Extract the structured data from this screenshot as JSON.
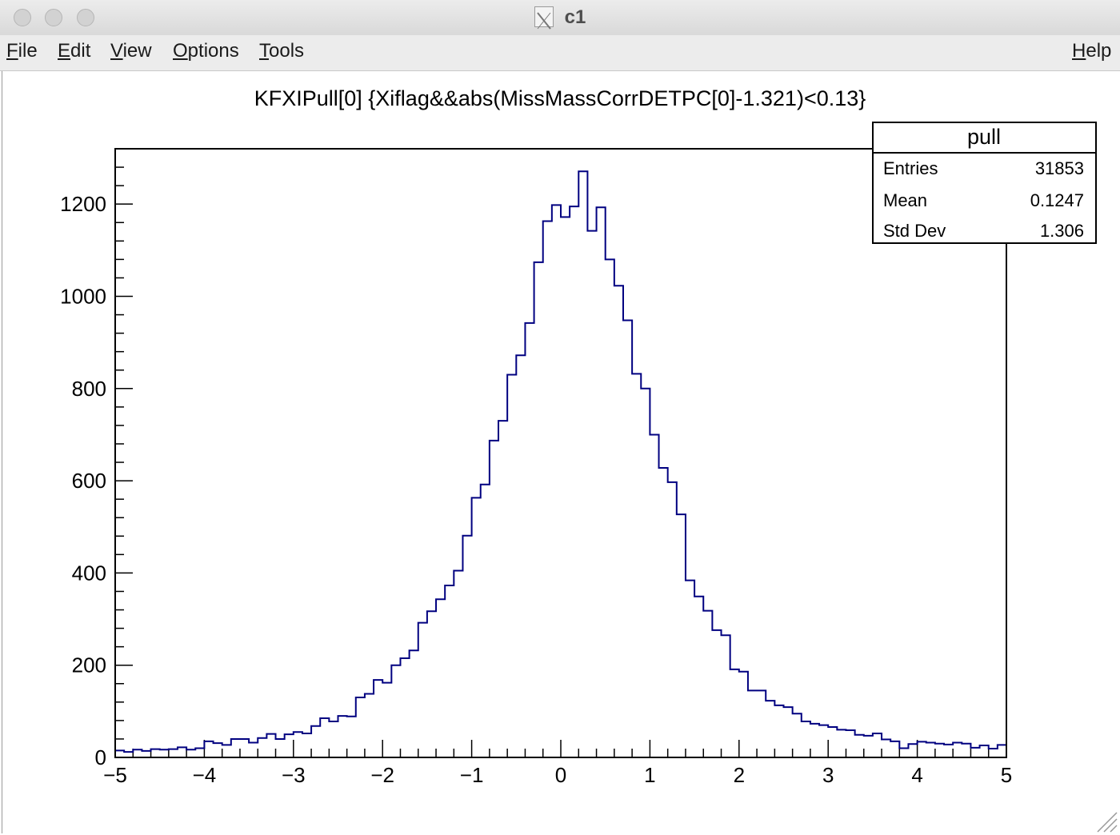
{
  "window": {
    "title": "c1"
  },
  "menu": {
    "items": [
      {
        "first": "F",
        "rest": "ile"
      },
      {
        "first": "E",
        "rest": "dit"
      },
      {
        "first": "V",
        "rest": "iew"
      },
      {
        "first": "O",
        "rest": "ptions"
      },
      {
        "first": "T",
        "rest": "ools"
      }
    ],
    "help": {
      "first": "H",
      "rest": "elp"
    }
  },
  "stats": {
    "name": "pull",
    "rows": [
      {
        "label": "Entries",
        "value": "31853"
      },
      {
        "label": "Mean",
        "value": "0.1247"
      },
      {
        "label": "Std Dev",
        "value": "1.306"
      }
    ]
  },
  "colors": {
    "histogram": "#000080",
    "axis": "#000000"
  },
  "chart_data": {
    "type": "histogram",
    "title": "KFXIPull[0] {Xiflag&&abs(MissMassCorrDETPC[0]-1.321)<0.13}",
    "xlabel": "",
    "ylabel": "",
    "xlim": [
      -5,
      5
    ],
    "ylim": [
      0,
      1320
    ],
    "bin_width": 0.1,
    "x_ticks": [
      "−5",
      "−4",
      "−3",
      "−2",
      "−1",
      "0",
      "1",
      "2",
      "3",
      "4",
      "5"
    ],
    "y_ticks": [
      "0",
      "200",
      "400",
      "600",
      "800",
      "1000",
      "1200"
    ],
    "values": [
      15,
      12,
      17,
      14,
      18,
      17,
      18,
      22,
      17,
      20,
      35,
      31,
      27,
      40,
      40,
      32,
      42,
      51,
      40,
      50,
      55,
      52,
      68,
      85,
      78,
      90,
      89,
      130,
      138,
      168,
      162,
      200,
      215,
      232,
      292,
      317,
      343,
      373,
      405,
      481,
      563,
      592,
      687,
      730,
      830,
      872,
      942,
      1074,
      1163,
      1198,
      1172,
      1195,
      1271,
      1142,
      1193,
      1080,
      1023,
      948,
      832,
      800,
      700,
      628,
      597,
      527,
      384,
      349,
      318,
      276,
      265,
      191,
      186,
      145,
      145,
      123,
      113,
      109,
      95,
      78,
      73,
      70,
      66,
      60,
      59,
      49,
      47,
      52,
      39,
      35,
      20,
      29,
      34,
      32,
      30,
      28,
      32,
      30,
      21,
      26,
      19,
      27
    ]
  }
}
